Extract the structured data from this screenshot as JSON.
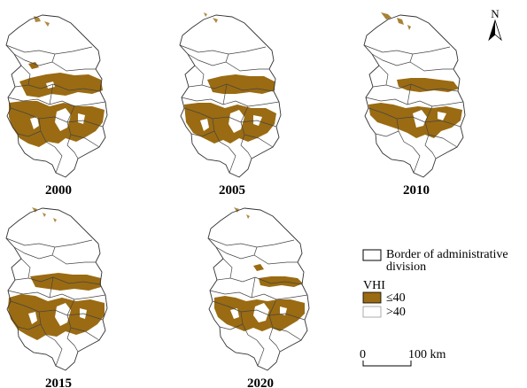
{
  "panels": [
    {
      "year": "2000"
    },
    {
      "year": "2005"
    },
    {
      "year": "2010"
    },
    {
      "year": "2015"
    },
    {
      "year": "2020"
    }
  ],
  "legend": {
    "border_label_line1": "Border of administrative",
    "border_label_line2": "division",
    "index_title": "VHI",
    "class_low": "≤40",
    "class_high": ">40",
    "low_color": "#9a6b12",
    "high_color": "#ffffff"
  },
  "north_arrow": {
    "label": "N"
  },
  "scale_bar": {
    "start": "0",
    "end": "100 km"
  }
}
